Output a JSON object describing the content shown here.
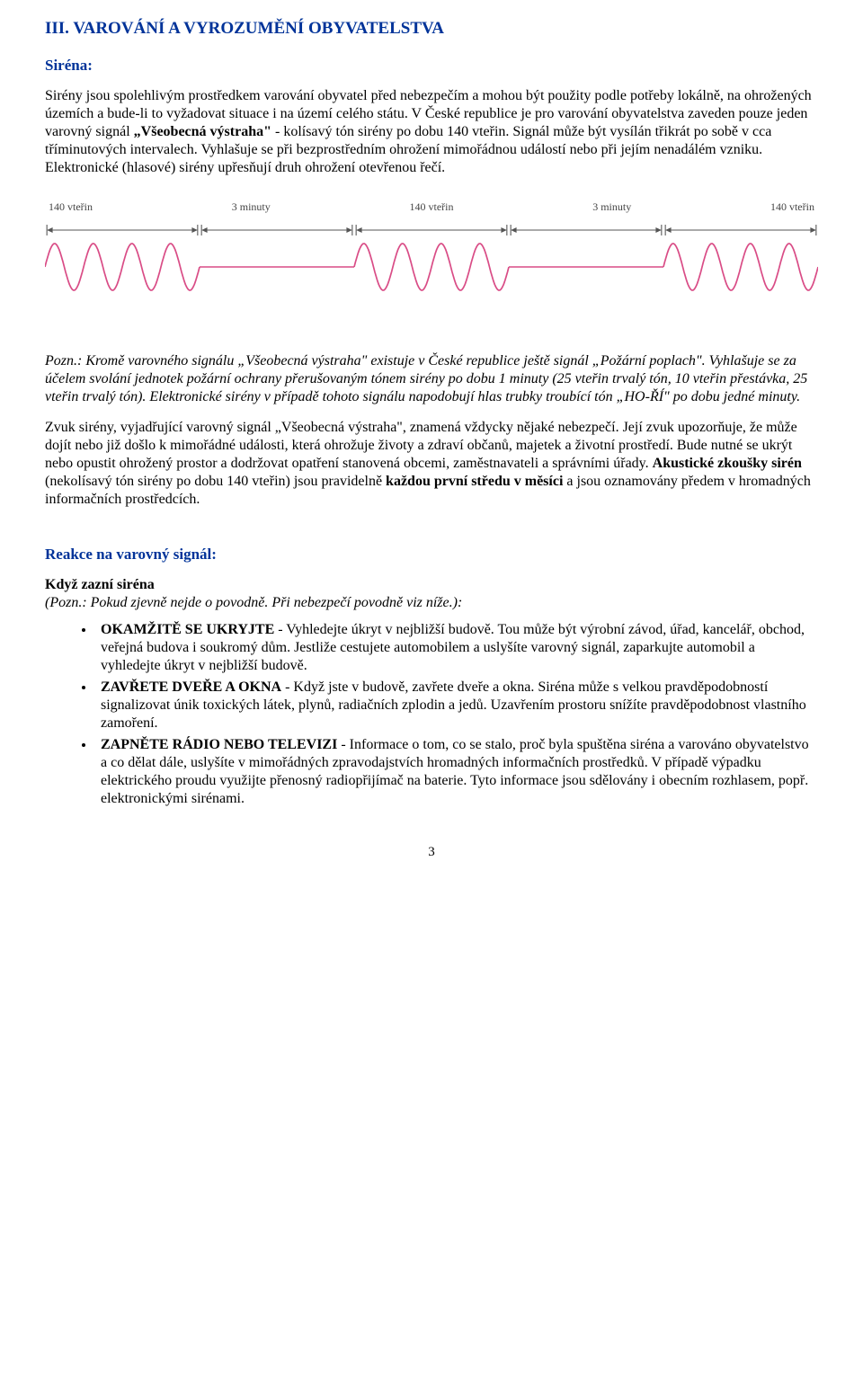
{
  "heading_main": "III.  VAROVÁNÍ  A  VYROZUMĚNÍ  OBYVATELSTVA",
  "heading_sirena": "Siréna:",
  "para1": "Sirény jsou spolehlivým prostředkem varování obyvatel před nebezpečím a mohou být použity podle potřeby lokálně, na ohrožených územích a bude-li to vyžadovat situace i na území celého státu. V České republice je pro varování obyvatelstva zaveden pouze jeden varovný signál „Všeobecná výstraha\" - kolísavý tón sirény po dobu 140 vteřin. Signál může být vysílán třikrát po sobě v cca tříminutových intervalech. Vyhlašuje se při bezprostředním ohrožení mimořádnou událostí nebo při jejím nenadálém vzniku. Elektronické (hlasové) sirény upřesňují druh ohrožení otevřenou řečí.",
  "para1_labelA": "Všeobecná výstraha",
  "diagram": {
    "labels": [
      "140 vteřin",
      "3 minuty",
      "140 vteřin",
      "3 minuty",
      "140 vteřin"
    ],
    "wave_color": "#d94c86",
    "arrow_color": "#555555",
    "bg": "#ffffff",
    "segment_widths": [
      0.2,
      0.2,
      0.2,
      0.2,
      0.2
    ]
  },
  "note_italic_1": "Pozn.: Kromě varovného signálu „Všeobecná výstraha\" existuje v České republice ještě signál „Požární poplach\". Vyhlašuje se za účelem svolání jednotek požární ochrany přerušovaným tónem sirény po dobu 1 minuty (25 vteřin trvalý tón, 10 vteřin přestávka, 25 vteřin trvalý tón). Elektronické sirény v případě tohoto signálu napodobují hlas trubky troubící tón „HO-ŘÍ\" po dobu jedné minuty.",
  "para3_prefix": "Zvuk sirény, vyjadřující varovný signál „Všeobecná výstraha\", znamená vždycky nějaké nebezpečí. Její zvuk upozorňuje, že může dojít nebo již došlo k mimořádné události, která ohrožuje životy a zdraví občanů, majetek a životní prostředí. Bude nutné se ukrýt nebo opustit ohrožený prostor a dodržovat opatření stanovená obcemi, zaměstnavateli a správními úřady. ",
  "para3_boldA": "Akustické zkoušky sirén",
  "para3_mid": " (nekolísavý tón sirény po dobu 140 vteřin) jsou pravidelně ",
  "para3_boldB": "každou první středu v měsíci",
  "para3_suffix": " a jsou oznamovány předem v hromadných informačních prostředcích.",
  "heading_reakce": "Reakce na varovný signál:",
  "kdyz_heading": "Když zazní siréna",
  "kdyz_note": "(Pozn.: Pokud zjevně nejde o povodně. Při nebezpečí povodně viz níže.):",
  "bullets": [
    {
      "bold": "OKAMŽITĚ SE UKRYJTE",
      "rest": " - Vyhledejte úkryt v nejbližší budově. Tou může být výrobní závod, úřad, kancelář, obchod, veřejná budova i soukromý dům. Jestliže cestujete automobilem a uslyšíte varovný signál, zaparkujte automobil a vyhledejte úkryt v nejbližší budově."
    },
    {
      "bold": "ZAVŘETE DVEŘE A OKNA",
      "rest": " - Když jste v budově, zavřete dveře a okna. Siréna může s velkou pravděpodobností signalizovat únik toxických látek, plynů, radiačních zplodin a jedů. Uzavřením prostoru snížíte pravděpodobnost vlastního zamoření."
    },
    {
      "bold": "ZAPNĚTE RÁDIO NEBO TELEVIZI",
      "rest": " - Informace o tom, co se stalo, proč byla spuštěna siréna a varováno obyvatelstvo a co dělat dále, uslyšíte v mimořádných zpravodajstvích hromadných informačních prostředků. V případě výpadku elektrického proudu využijte přenosný radiopřijímač na baterie. Tyto informace jsou sdělovány i obecním rozhlasem, popř. elektronickými sirénami."
    }
  ],
  "page_number": "3"
}
